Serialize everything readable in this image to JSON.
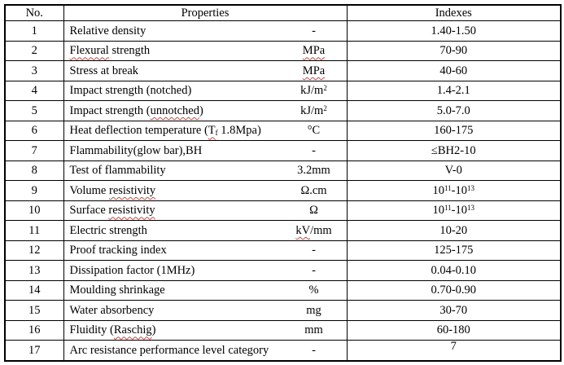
{
  "colors": {
    "background": "#ffffff",
    "text": "#000000",
    "border": "#000000",
    "squiggle": "#c54a43"
  },
  "table": {
    "headers": [
      "No.",
      "Properties",
      "Indexes"
    ],
    "rows": [
      {
        "no": "1",
        "property": [
          {
            "text": "Relative density"
          }
        ],
        "unit": [
          {
            "text": "-"
          }
        ],
        "index": [
          {
            "text": "1.40-1.50"
          }
        ]
      },
      {
        "no": "2",
        "property": [
          {
            "text": "Flexural",
            "squiggle": true
          },
          {
            "text": " strength"
          }
        ],
        "unit": [
          {
            "text": "MPa",
            "squiggle": true
          }
        ],
        "index": [
          {
            "text": "70-90"
          }
        ]
      },
      {
        "no": "3",
        "property": [
          {
            "text": "Stress at break"
          }
        ],
        "unit": [
          {
            "text": "MPa",
            "squiggle": true
          }
        ],
        "index": [
          {
            "text": "40-60"
          }
        ]
      },
      {
        "no": "4",
        "property": [
          {
            "text": "Impact strength (notched)"
          }
        ],
        "unit": [
          {
            "text": "kJ/m"
          },
          {
            "text": "2",
            "sup": true
          }
        ],
        "index": [
          {
            "text": "1.4-2.1"
          }
        ]
      },
      {
        "no": "5",
        "property": [
          {
            "text": "Impact strength ("
          },
          {
            "text": "unnotched",
            "squiggle": true
          },
          {
            "text": ")"
          }
        ],
        "unit": [
          {
            "text": "kJ/m"
          },
          {
            "text": "2",
            "sup": true
          }
        ],
        "index": [
          {
            "text": "5.0-7.0"
          }
        ]
      },
      {
        "no": "6",
        "property": [
          {
            "text": "Heat deflection temperature ("
          },
          {
            "text": "T",
            "squiggle": true
          },
          {
            "text": "f",
            "sub": true,
            "squiggle": true
          },
          {
            "text": " 1.8Mpa)"
          }
        ],
        "unit": [
          {
            "text": "°C"
          }
        ],
        "index": [
          {
            "text": "160-175"
          }
        ]
      },
      {
        "no": "7",
        "property": [
          {
            "text": "Flammability(glow bar),BH"
          }
        ],
        "unit": [
          {
            "text": "-"
          }
        ],
        "index": [
          {
            "text": "≤BH2-10"
          }
        ]
      },
      {
        "no": "8",
        "property": [
          {
            "text": "Test of flammability"
          }
        ],
        "unit": [
          {
            "text": "3.2mm"
          }
        ],
        "index": [
          {
            "text": "V-0"
          }
        ]
      },
      {
        "no": "9",
        "property": [
          {
            "text": "Volume "
          },
          {
            "text": "resistivity",
            "squiggle": true
          }
        ],
        "unit": [
          {
            "text": "Ω.cm"
          }
        ],
        "index": [
          {
            "text": "10"
          },
          {
            "text": "11",
            "sup": true
          },
          {
            "text": "-10"
          },
          {
            "text": "13",
            "sup": true
          }
        ]
      },
      {
        "no": "10",
        "property": [
          {
            "text": "Surface "
          },
          {
            "text": "resistivity",
            "squiggle": true
          }
        ],
        "unit": [
          {
            "text": "Ω"
          }
        ],
        "index": [
          {
            "text": "10"
          },
          {
            "text": "11",
            "sup": true
          },
          {
            "text": "-10"
          },
          {
            "text": "13",
            "sup": true
          }
        ]
      },
      {
        "no": "11",
        "property": [
          {
            "text": "Electric strength"
          }
        ],
        "unit": [
          {
            "text": "kV",
            "squiggle": true
          },
          {
            "text": "/mm"
          }
        ],
        "index": [
          {
            "text": "10-20"
          }
        ]
      },
      {
        "no": "12",
        "property": [
          {
            "text": "Proof tracking index"
          }
        ],
        "unit": [
          {
            "text": "-"
          }
        ],
        "index": [
          {
            "text": "125-175"
          }
        ]
      },
      {
        "no": "13",
        "property": [
          {
            "text": "Dissipation factor (1MHz)"
          }
        ],
        "unit": [
          {
            "text": "-"
          }
        ],
        "index": [
          {
            "text": "0.04-0.10"
          }
        ]
      },
      {
        "no": "14",
        "property": [
          {
            "text": "Moulding shrinkage"
          }
        ],
        "unit": [
          {
            "text": "%"
          }
        ],
        "index": [
          {
            "text": "0.70-0.90"
          }
        ]
      },
      {
        "no": "15",
        "property": [
          {
            "text": "Water absorbency"
          }
        ],
        "unit": [
          {
            "text": "mg"
          }
        ],
        "index": [
          {
            "text": "30-70"
          }
        ]
      },
      {
        "no": "16",
        "property": [
          {
            "text": "Fluidity ("
          },
          {
            "text": "Raschig",
            "squiggle": true
          },
          {
            "text": ")"
          }
        ],
        "unit": [
          {
            "text": "mm"
          }
        ],
        "index": [
          {
            "text": "60-180"
          }
        ]
      },
      {
        "no": "17",
        "property": [
          {
            "text": "Arc resistance performance level category"
          }
        ],
        "unit": [
          {
            "text": "-"
          }
        ],
        "index": [
          {
            "text": "7"
          }
        ],
        "index_valign": "top"
      }
    ]
  }
}
